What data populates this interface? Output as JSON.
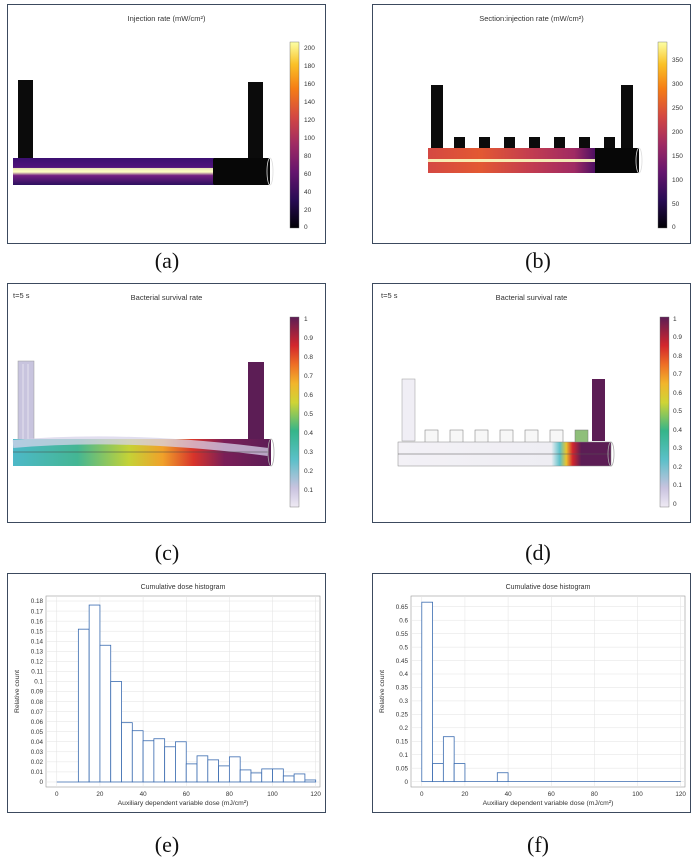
{
  "panels": {
    "a": {
      "caption": "(a)",
      "title": "Injection rate (mW/cm²)",
      "colorbar": {
        "ticks": [
          "200",
          "180",
          "160",
          "140",
          "120",
          "100",
          "80",
          "60",
          "40",
          "20",
          "0"
        ],
        "colors": {
          "low": "#000004",
          "mid": "#b53679",
          "high": "#fcfdbf"
        }
      }
    },
    "b": {
      "caption": "(b)",
      "title": "Section:injection rate (mW/cm²)",
      "colorbar": {
        "ticks": [
          "350",
          "300",
          "250",
          "200",
          "150",
          "100",
          "50",
          "0"
        ]
      }
    },
    "c": {
      "caption": "(c)",
      "time": "t=5 s",
      "title": "Bacterial survival rate",
      "colorbar": {
        "ticks": [
          "1",
          "0.9",
          "0.8",
          "0.7",
          "0.6",
          "0.5",
          "0.4",
          "0.3",
          "0.2",
          "0.1"
        ]
      }
    },
    "d": {
      "caption": "(d)",
      "time": "t=5 s",
      "title": "Bacterial survival rate",
      "colorbar": {
        "ticks": [
          "1",
          "0.9",
          "0.8",
          "0.7",
          "0.6",
          "0.5",
          "0.4",
          "0.3",
          "0.2",
          "0.1",
          "0"
        ]
      }
    },
    "e": {
      "caption": "(e)"
    },
    "f": {
      "caption": "(f)"
    }
  },
  "chart_data": [
    {
      "id": "e",
      "type": "bar",
      "title": "Cumulative dose histogram",
      "xlabel": "Auxiliary dependent variable dose (mJ/cm²)",
      "ylabel": "Relative count",
      "xlim": [
        -5,
        122
      ],
      "ylim": [
        -0.005,
        0.185
      ],
      "bin_width": 5,
      "bins": [
        10,
        15,
        20,
        25,
        30,
        35,
        40,
        45,
        50,
        55,
        60,
        65,
        70,
        75,
        80,
        85,
        90,
        95,
        100,
        105,
        110,
        115
      ],
      "values": [
        0.152,
        0.176,
        0.136,
        0.1,
        0.059,
        0.051,
        0.041,
        0.043,
        0.035,
        0.04,
        0.018,
        0.026,
        0.022,
        0.016,
        0.025,
        0.012,
        0.009,
        0.013,
        0.013,
        0.006,
        0.008,
        0.002
      ],
      "xticks": [
        "0",
        "20",
        "40",
        "60",
        "80",
        "100",
        "120"
      ],
      "xtick_values": [
        0,
        20,
        40,
        60,
        80,
        100,
        120
      ],
      "yticks": [
        "0",
        "0.01",
        "0.02",
        "0.03",
        "0.04",
        "0.05",
        "0.06",
        "0.07",
        "0.08",
        "0.09",
        "0.1",
        "0.11",
        "0.12",
        "0.13",
        "0.14",
        "0.15",
        "0.16",
        "0.17",
        "0.18"
      ],
      "ytick_values": [
        0,
        0.01,
        0.02,
        0.03,
        0.04,
        0.05,
        0.06,
        0.07,
        0.08,
        0.09,
        0.1,
        0.11,
        0.12,
        0.13,
        0.14,
        0.15,
        0.16,
        0.17,
        0.18
      ],
      "baseline_x": [
        0,
        10
      ],
      "color": "#3a6bb0"
    },
    {
      "id": "f",
      "type": "bar",
      "title": "Cumulative dose histogram",
      "xlabel": "Auxiliary dependent variable dose (mJ/cm²)",
      "ylabel": "Relative count",
      "xlim": [
        -5,
        122
      ],
      "ylim": [
        -0.02,
        0.69
      ],
      "bin_width": 5,
      "bins": [
        0,
        5,
        10,
        15,
        35
      ],
      "values": [
        0.667,
        0.067,
        0.167,
        0.067,
        0.033
      ],
      "xticks": [
        "0",
        "20",
        "40",
        "60",
        "80",
        "100",
        "120"
      ],
      "xtick_values": [
        0,
        20,
        40,
        60,
        80,
        100,
        120
      ],
      "yticks": [
        "0",
        "0.05",
        "0.1",
        "0.15",
        "0.2",
        "0.25",
        "0.3",
        "0.35",
        "0.4",
        "0.45",
        "0.5",
        "0.55",
        "0.6",
        "0.65"
      ],
      "ytick_values": [
        0,
        0.05,
        0.1,
        0.15,
        0.2,
        0.25,
        0.3,
        0.35,
        0.4,
        0.45,
        0.5,
        0.55,
        0.6,
        0.65
      ],
      "baseline_x": [
        20,
        120
      ],
      "color": "#3a6bb0"
    }
  ]
}
